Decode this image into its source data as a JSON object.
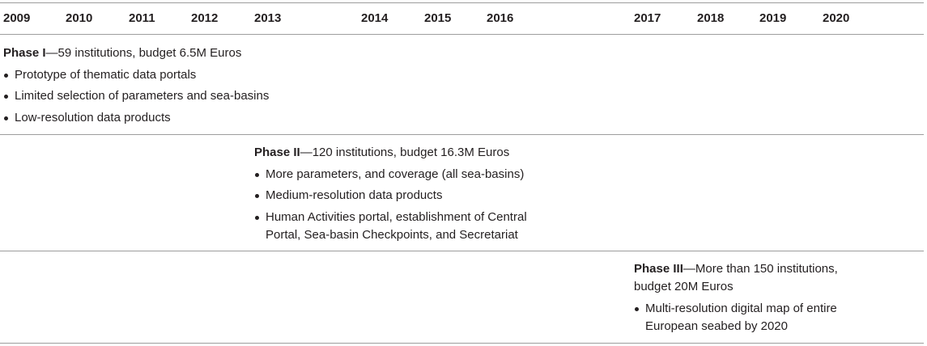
{
  "years": [
    "2009",
    "2010",
    "2011",
    "2012",
    "2013",
    "2014",
    "2015",
    "2016",
    "2017",
    "2018",
    "2019",
    "2020"
  ],
  "phases": [
    {
      "name": "Phase I",
      "detail": "—59 institutions, budget 6.5M Euros",
      "bullets": [
        "Prototype of thematic data portals",
        "Limited selection of parameters and sea-basins",
        "Low-resolution data products"
      ]
    },
    {
      "name": "Phase II",
      "detail": "—120 institutions, budget 16.3M Euros",
      "bullets": [
        "More parameters, and coverage (all sea-basins)",
        "Medium-resolution data products",
        "Human Activities portal, establishment of Central Portal, Sea-basin Checkpoints, and Secretariat"
      ]
    },
    {
      "name": "Phase III",
      "detail": "—More than 150 institutions, budget 20M Euros",
      "bullets": [
        "Multi-resolution digital map of entire European seabed by 2020"
      ]
    }
  ]
}
